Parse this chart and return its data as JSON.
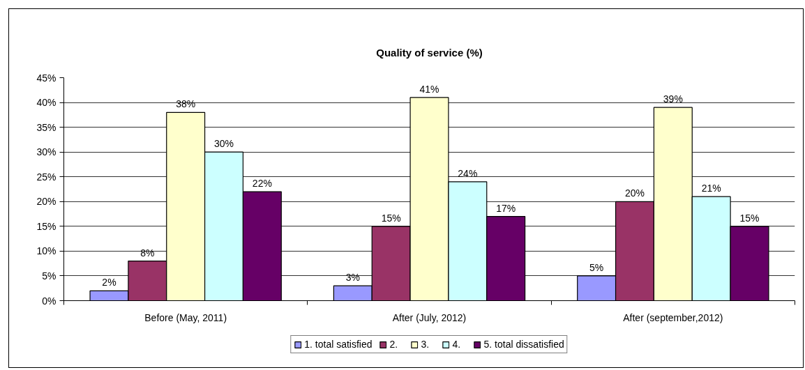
{
  "chart_data": {
    "type": "bar",
    "title": "Quality of service (%)",
    "categories": [
      "Before (May, 2011)",
      "After (July, 2012)",
      "After (september,2012)"
    ],
    "series": [
      {
        "name": "1. total satisfied",
        "color": "#9999ff",
        "values": [
          2,
          3,
          5
        ],
        "value_labels": [
          "2%",
          "3%",
          "5%"
        ]
      },
      {
        "name": "2.",
        "color": "#993366",
        "values": [
          8,
          15,
          20
        ],
        "value_labels": [
          "8%",
          "15%",
          "20%"
        ]
      },
      {
        "name": "3.",
        "color": "#ffffcc",
        "values": [
          38,
          41,
          39
        ],
        "value_labels": [
          "38%",
          "41%",
          "39%"
        ]
      },
      {
        "name": "4.",
        "color": "#ccffff",
        "values": [
          30,
          24,
          21
        ],
        "value_labels": [
          "30%",
          "24%",
          "21%"
        ]
      },
      {
        "name": "5. total dissatisfied",
        "color": "#660066",
        "values": [
          22,
          17,
          15
        ],
        "value_labels": [
          "22%",
          "17%",
          "15%"
        ]
      }
    ],
    "ylim": [
      0,
      45
    ],
    "yticks": [
      {
        "value": 0,
        "label": "0%"
      },
      {
        "value": 5,
        "label": "5%"
      },
      {
        "value": 10,
        "label": "10%"
      },
      {
        "value": 15,
        "label": "15%"
      },
      {
        "value": 20,
        "label": "20%"
      },
      {
        "value": 25,
        "label": "25%"
      },
      {
        "value": 30,
        "label": "30%"
      },
      {
        "value": 35,
        "label": "35%"
      },
      {
        "value": 40,
        "label": "40%"
      },
      {
        "value": 45,
        "label": "45%"
      }
    ],
    "grid": "y",
    "legend": "bottom"
  }
}
